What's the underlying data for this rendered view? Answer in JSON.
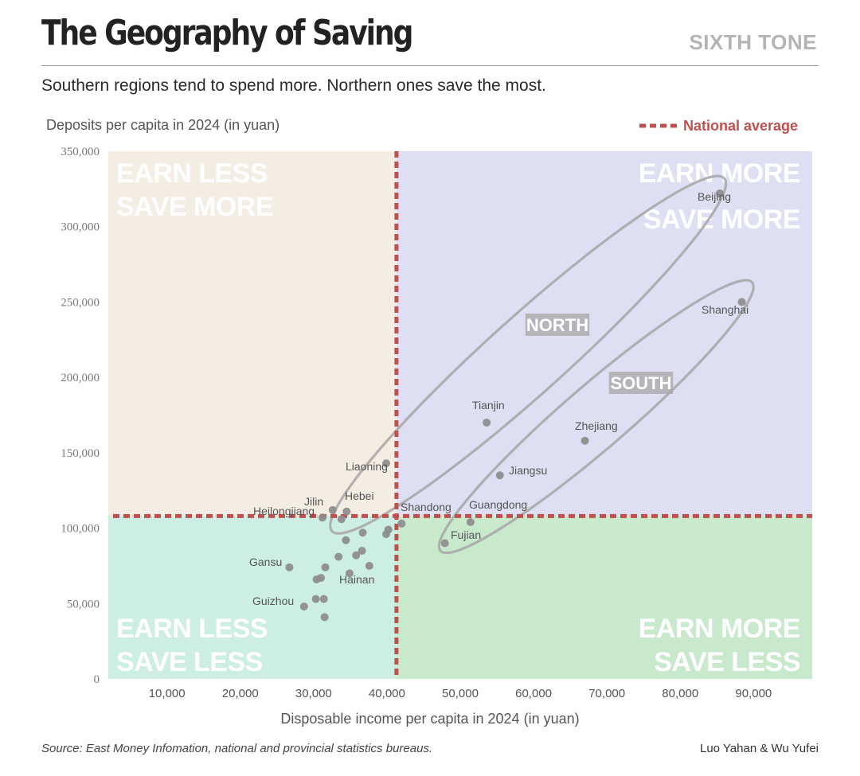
{
  "header": {
    "title": "The Geography of Saving",
    "brand": "SIXTH TONE",
    "subtitle": "Southern regions tend to spend more. Northern ones save the most."
  },
  "footer": {
    "source": "Source:  East Money Infomation, national and provincial statistics bureaus.",
    "credit": "Luo Yahan & Wu Yufei"
  },
  "colors": {
    "top_left": "#f3ede4",
    "top_right": "#dedff3",
    "bottom_left": "#cdeee3",
    "bottom_right": "#c9e9cc",
    "average_line": "#c0504d",
    "point": "#8c8c8c",
    "ellipse": "#a6a6a6"
  },
  "chart_data": {
    "type": "scatter",
    "title": "The Geography of Saving",
    "subtitle": "Southern regions tend to spend more. Northern ones save the most.",
    "xlabel": "Disposable income per capita in 2024 (in yuan)",
    "ylabel": "Deposits per capita in 2024 (in yuan)",
    "xlim": [
      2000,
      98000
    ],
    "ylim": [
      0,
      350000
    ],
    "xticks": [
      10000,
      20000,
      30000,
      40000,
      50000,
      60000,
      70000,
      80000,
      90000
    ],
    "xtick_labels": [
      "10,000",
      "20,000",
      "30,000",
      "40,000",
      "50,000",
      "60,000",
      "70,000",
      "80,000",
      "90,000"
    ],
    "yticks": [
      0,
      50000,
      100000,
      150000,
      200000,
      250000,
      300000,
      350000
    ],
    "ytick_labels": [
      "0",
      "50,000",
      "100,000",
      "150,000",
      "200,000",
      "250,000",
      "300,000",
      "350,000"
    ],
    "grid": false,
    "legend": {
      "label": "National average",
      "placement": "top-right"
    },
    "national_average": {
      "x": 41300,
      "y": 108000
    },
    "quadrant_labels": {
      "top_left": [
        "EARN LESS",
        "SAVE MORE"
      ],
      "top_right": [
        "EARN MORE",
        "SAVE MORE"
      ],
      "bottom_left": [
        "EARN LESS",
        "SAVE LESS"
      ],
      "bottom_right": [
        "EARN MORE",
        "SAVE LESS"
      ]
    },
    "groups": [
      {
        "name": "NORTH",
        "label_x": 66000,
        "label_y": 207000
      },
      {
        "name": "SOUTH",
        "label_x": 73000,
        "label_y": 192000
      }
    ],
    "points": [
      {
        "name": "Beijing",
        "x": 85400,
        "y": 322000
      },
      {
        "name": "Shanghai",
        "x": 88400,
        "y": 250000
      },
      {
        "name": "Tianjin",
        "x": 53600,
        "y": 170000
      },
      {
        "name": "Zhejiang",
        "x": 67000,
        "y": 158000
      },
      {
        "name": "Jiangsu",
        "x": 55400,
        "y": 135000
      },
      {
        "name": "Liaoning",
        "x": 39900,
        "y": 143000
      },
      {
        "name": "Guangdong",
        "x": 51400,
        "y": 104000
      },
      {
        "name": "Fujian",
        "x": 47900,
        "y": 90000
      },
      {
        "name": "Shandong",
        "x": 42000,
        "y": 103000
      },
      {
        "name": "Hebei",
        "x": 34500,
        "y": 111000
      },
      {
        "name": "Jilin",
        "x": 32600,
        "y": 112000
      },
      {
        "name": "Heilongjiang",
        "x": 31200,
        "y": 107000
      },
      {
        "name": "Gansu",
        "x": 26700,
        "y": 74000
      },
      {
        "name": "Hainan",
        "x": 34900,
        "y": 70000
      },
      {
        "name": "Guizhou",
        "x": 28700,
        "y": 48000
      },
      {
        "name": "",
        "x": 33800,
        "y": 106000
      },
      {
        "name": "",
        "x": 34400,
        "y": 92000
      },
      {
        "name": "",
        "x": 36700,
        "y": 97000
      },
      {
        "name": "",
        "x": 39900,
        "y": 96000
      },
      {
        "name": "",
        "x": 40200,
        "y": 99000
      },
      {
        "name": "",
        "x": 35800,
        "y": 82000
      },
      {
        "name": "",
        "x": 36600,
        "y": 85000
      },
      {
        "name": "",
        "x": 33400,
        "y": 81000
      },
      {
        "name": "",
        "x": 37600,
        "y": 75000
      },
      {
        "name": "",
        "x": 31600,
        "y": 74000
      },
      {
        "name": "",
        "x": 31000,
        "y": 67000
      },
      {
        "name": "",
        "x": 30400,
        "y": 66000
      },
      {
        "name": "",
        "x": 30300,
        "y": 53000
      },
      {
        "name": "",
        "x": 31400,
        "y": 53000
      },
      {
        "name": "",
        "x": 31500,
        "y": 41000
      }
    ],
    "ellipses": [
      {
        "name": "NORTH",
        "through": [
          [
            32500,
            98000
          ],
          [
            86000,
            332000
          ]
        ],
        "minor": 17000
      },
      {
        "name": "SOUTH",
        "through": [
          [
            47300,
            85000
          ],
          [
            89800,
            263000
          ]
        ],
        "minor": 14000
      }
    ]
  }
}
